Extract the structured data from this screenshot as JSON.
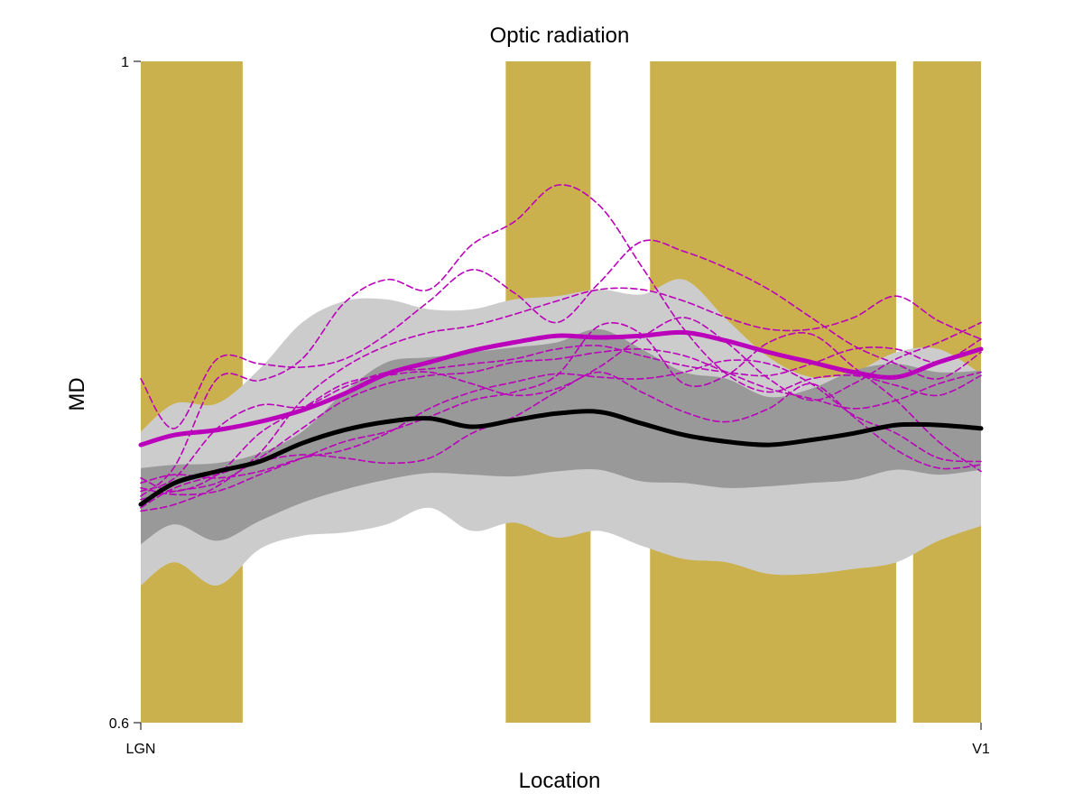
{
  "chart_data": {
    "type": "line",
    "title": "Optic radiation",
    "xlabel": "Location",
    "ylabel": "MD",
    "ylim": [
      0.6,
      1.0
    ],
    "yticks": [
      {
        "value": 0.6,
        "label": "0.6"
      },
      {
        "value": 1.0,
        "label": "1"
      }
    ],
    "xticks": [
      {
        "value": 1,
        "label": "LGN"
      },
      {
        "value": 100,
        "label": "V1"
      }
    ],
    "x": [
      1,
      5,
      10,
      15,
      20,
      25,
      30,
      35,
      40,
      45,
      50,
      55,
      60,
      65,
      70,
      75,
      80,
      85,
      90,
      95,
      100
    ],
    "grid": false,
    "legend": "none",
    "significant_regions": [
      {
        "x_start": 1,
        "x_end": 13
      },
      {
        "x_start": 44,
        "x_end": 54
      },
      {
        "x_start": 61,
        "x_end": 90
      },
      {
        "x_start": 92,
        "x_end": 100
      }
    ],
    "bands": {
      "outer_upper": [
        0.776,
        0.793,
        0.793,
        0.814,
        0.842,
        0.855,
        0.856,
        0.85,
        0.85,
        0.856,
        0.858,
        0.862,
        0.859,
        0.868,
        0.844,
        0.821,
        0.809,
        0.812,
        0.824,
        0.826,
        0.811
      ],
      "outer_lower": [
        0.683,
        0.697,
        0.683,
        0.705,
        0.713,
        0.715,
        0.72,
        0.73,
        0.716,
        0.721,
        0.712,
        0.716,
        0.707,
        0.699,
        0.697,
        0.69,
        0.69,
        0.693,
        0.697,
        0.71,
        0.719
      ],
      "inner_upper": [
        0.754,
        0.756,
        0.757,
        0.763,
        0.776,
        0.8,
        0.818,
        0.821,
        0.824,
        0.827,
        0.83,
        0.838,
        0.826,
        0.812,
        0.808,
        0.797,
        0.802,
        0.813,
        0.817,
        0.812,
        0.813
      ],
      "inner_lower": [
        0.708,
        0.72,
        0.71,
        0.722,
        0.733,
        0.741,
        0.747,
        0.751,
        0.75,
        0.749,
        0.752,
        0.753,
        0.746,
        0.745,
        0.742,
        0.743,
        0.745,
        0.747,
        0.753,
        0.75,
        0.753
      ]
    },
    "series": [
      {
        "role": "group-mean",
        "style": "solid",
        "color": "#000000",
        "values": [
          0.732,
          0.745,
          0.752,
          0.758,
          0.769,
          0.777,
          0.782,
          0.784,
          0.779,
          0.783,
          0.787,
          0.788,
          0.781,
          0.774,
          0.77,
          0.768,
          0.771,
          0.775,
          0.78,
          0.78,
          0.778
        ]
      },
      {
        "role": "patient-mean",
        "style": "solid",
        "color": "#bb00bb",
        "values": [
          0.768,
          0.774,
          0.777,
          0.782,
          0.789,
          0.799,
          0.811,
          0.818,
          0.825,
          0.83,
          0.834,
          0.833,
          0.834,
          0.836,
          0.831,
          0.824,
          0.818,
          0.812,
          0.809,
          0.818,
          0.826
        ]
      },
      {
        "role": "patient",
        "style": "dashed",
        "color": "#bb00bb",
        "values": [
          0.808,
          0.778,
          0.82,
          0.817,
          0.815,
          0.82,
          0.835,
          0.855,
          0.874,
          0.86,
          0.842,
          0.866,
          0.891,
          0.885,
          0.875,
          0.862,
          0.845,
          0.828,
          0.817,
          0.808,
          0.824
        ]
      },
      {
        "role": "patient",
        "style": "dashed",
        "color": "#bb00bb",
        "values": [
          0.737,
          0.755,
          0.808,
          0.807,
          0.82,
          0.854,
          0.868,
          0.862,
          0.889,
          0.903,
          0.925,
          0.913,
          0.876,
          0.838,
          0.811,
          0.8,
          0.808,
          0.81,
          0.804,
          0.798,
          0.81
        ]
      },
      {
        "role": "patient",
        "style": "dashed",
        "color": "#bb00bb",
        "values": [
          0.74,
          0.748,
          0.778,
          0.792,
          0.791,
          0.803,
          0.812,
          0.814,
          0.817,
          0.82,
          0.826,
          0.828,
          0.822,
          0.816,
          0.812,
          0.81,
          0.817,
          0.826,
          0.826,
          0.818,
          0.832
        ]
      },
      {
        "role": "patient",
        "style": "dashed",
        "color": "#bb00bb",
        "values": [
          0.728,
          0.732,
          0.743,
          0.763,
          0.795,
          0.815,
          0.828,
          0.836,
          0.84,
          0.847,
          0.855,
          0.862,
          0.862,
          0.855,
          0.845,
          0.838,
          0.838,
          0.845,
          0.858,
          0.843,
          0.832
        ]
      },
      {
        "role": "patient",
        "style": "dashed",
        "color": "#bb00bb",
        "values": [
          0.742,
          0.738,
          0.74,
          0.75,
          0.76,
          0.77,
          0.776,
          0.785,
          0.795,
          0.8,
          0.81,
          0.84,
          0.835,
          0.805,
          0.81,
          0.83,
          0.835,
          0.815,
          0.795,
          0.77,
          0.752
        ]
      },
      {
        "role": "patient",
        "style": "dashed",
        "color": "#bb00bb",
        "values": [
          0.748,
          0.74,
          0.75,
          0.775,
          0.79,
          0.805,
          0.81,
          0.812,
          0.805,
          0.798,
          0.802,
          0.815,
          0.833,
          0.845,
          0.83,
          0.808,
          0.795,
          0.805,
          0.82,
          0.83,
          0.842
        ]
      },
      {
        "role": "patient",
        "style": "dashed",
        "color": "#bb00bb",
        "values": [
          0.735,
          0.74,
          0.745,
          0.76,
          0.778,
          0.795,
          0.805,
          0.81,
          0.812,
          0.818,
          0.82,
          0.824,
          0.826,
          0.822,
          0.812,
          0.802,
          0.796,
          0.79,
          0.795,
          0.805,
          0.812
        ]
      },
      {
        "role": "patient",
        "style": "dashed",
        "color": "#bb00bb",
        "values": [
          0.745,
          0.75,
          0.748,
          0.752,
          0.76,
          0.765,
          0.775,
          0.79,
          0.8,
          0.806,
          0.811,
          0.809,
          0.808,
          0.812,
          0.819,
          0.817,
          0.805,
          0.786,
          0.775,
          0.76,
          0.758
        ]
      },
      {
        "role": "patient",
        "style": "dashed",
        "color": "#bb00bb",
        "values": [
          0.73,
          0.742,
          0.75,
          0.758,
          0.762,
          0.76,
          0.757,
          0.76,
          0.775,
          0.785,
          0.8,
          0.812,
          0.8,
          0.788,
          0.782,
          0.79,
          0.805,
          0.785,
          0.765,
          0.754,
          0.756
        ]
      }
    ],
    "colors": {
      "significant_region": "#cbb14d",
      "outer_band": "#cccccc",
      "inner_band": "#999999"
    }
  }
}
